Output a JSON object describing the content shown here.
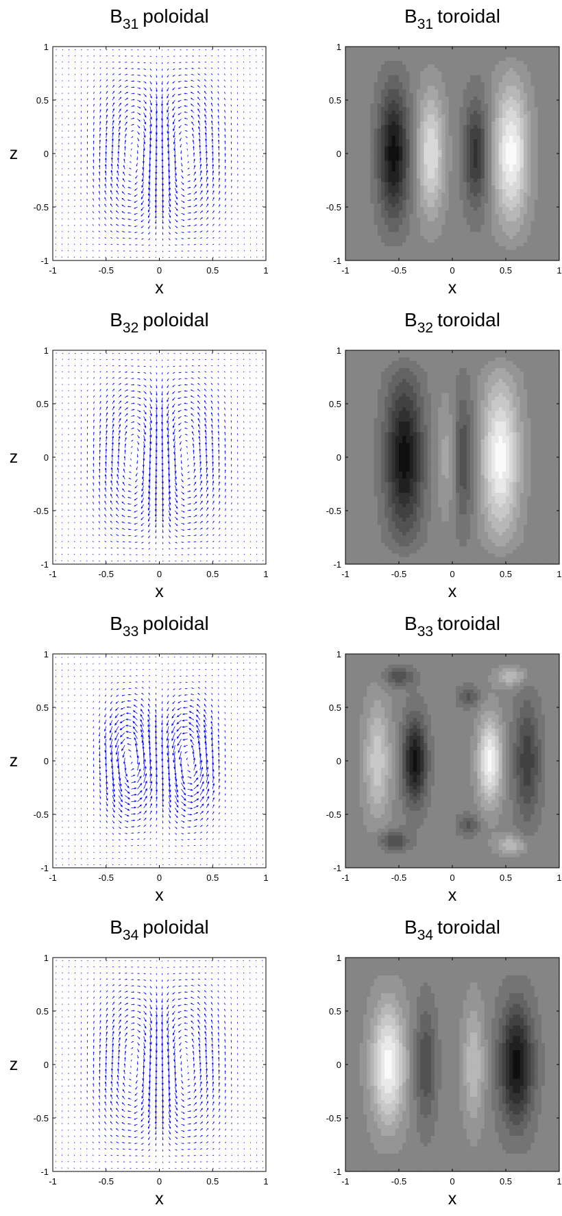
{
  "chart_data": [
    {
      "type": "quiver",
      "title": {
        "base": "B",
        "sub": "31",
        "rest": "poloidal"
      },
      "xlabel": "x",
      "ylabel": "z",
      "xlim": [
        -1,
        1
      ],
      "ylim": [
        -1,
        1
      ],
      "xticks": [
        -1,
        -0.5,
        0,
        0.5,
        1
      ],
      "yticks": [
        -1,
        -0.5,
        0,
        0.5,
        1
      ],
      "color": "#0000ff"
    },
    {
      "type": "contour",
      "title": {
        "base": "B",
        "sub": "31",
        "rest": "toroidal"
      },
      "xlabel": "x",
      "xlim": [
        -1,
        1
      ],
      "ylim": [
        -1,
        1
      ],
      "xticks": [
        -1,
        -0.5,
        0,
        0.5,
        1
      ],
      "yticks": [
        -1,
        -0.5,
        0,
        0.5,
        1
      ],
      "colormap": "gray"
    },
    {
      "type": "quiver",
      "title": {
        "base": "B",
        "sub": "32",
        "rest": "poloidal"
      },
      "xlabel": "x",
      "ylabel": "z",
      "xlim": [
        -1,
        1
      ],
      "ylim": [
        -1,
        1
      ],
      "xticks": [
        -1,
        -0.5,
        0,
        0.5,
        1
      ],
      "yticks": [
        -1,
        -0.5,
        0,
        0.5,
        1
      ],
      "color": "#0000ff"
    },
    {
      "type": "contour",
      "title": {
        "base": "B",
        "sub": "32",
        "rest": "toroidal"
      },
      "xlabel": "x",
      "xlim": [
        -1,
        1
      ],
      "ylim": [
        -1,
        1
      ],
      "xticks": [
        -1,
        -0.5,
        0,
        0.5,
        1
      ],
      "yticks": [
        -1,
        -0.5,
        0,
        0.5,
        1
      ],
      "colormap": "gray"
    },
    {
      "type": "quiver",
      "title": {
        "base": "B",
        "sub": "33",
        "rest": "poloidal"
      },
      "xlabel": "x",
      "ylabel": "z",
      "xlim": [
        -1,
        1
      ],
      "ylim": [
        -1,
        1
      ],
      "xticks": [
        -1,
        -0.5,
        0,
        0.5,
        1
      ],
      "yticks": [
        -1,
        -0.5,
        0,
        0.5,
        1
      ],
      "color": "#0000ff"
    },
    {
      "type": "contour",
      "title": {
        "base": "B",
        "sub": "33",
        "rest": "toroidal"
      },
      "xlabel": "x",
      "xlim": [
        -1,
        1
      ],
      "ylim": [
        -1,
        1
      ],
      "xticks": [
        -1,
        -0.5,
        0,
        0.5,
        1
      ],
      "yticks": [
        -1,
        -0.5,
        0,
        0.5,
        1
      ],
      "colormap": "gray"
    },
    {
      "type": "quiver",
      "title": {
        "base": "B",
        "sub": "34",
        "rest": "poloidal"
      },
      "xlabel": "x",
      "ylabel": "z",
      "xlim": [
        -1,
        1
      ],
      "ylim": [
        -1,
        1
      ],
      "xticks": [
        -1,
        -0.5,
        0,
        0.5,
        1
      ],
      "yticks": [
        -1,
        -0.5,
        0,
        0.5,
        1
      ],
      "color": "#0000ff"
    },
    {
      "type": "contour",
      "title": {
        "base": "B",
        "sub": "34",
        "rest": "toroidal"
      },
      "xlabel": "x",
      "xlim": [
        -1,
        1
      ],
      "ylim": [
        -1,
        1
      ],
      "xticks": [
        -1,
        -0.5,
        0,
        0.5,
        1
      ],
      "yticks": [
        -1,
        -0.5,
        0,
        0.5,
        1
      ],
      "colormap": "gray"
    }
  ]
}
